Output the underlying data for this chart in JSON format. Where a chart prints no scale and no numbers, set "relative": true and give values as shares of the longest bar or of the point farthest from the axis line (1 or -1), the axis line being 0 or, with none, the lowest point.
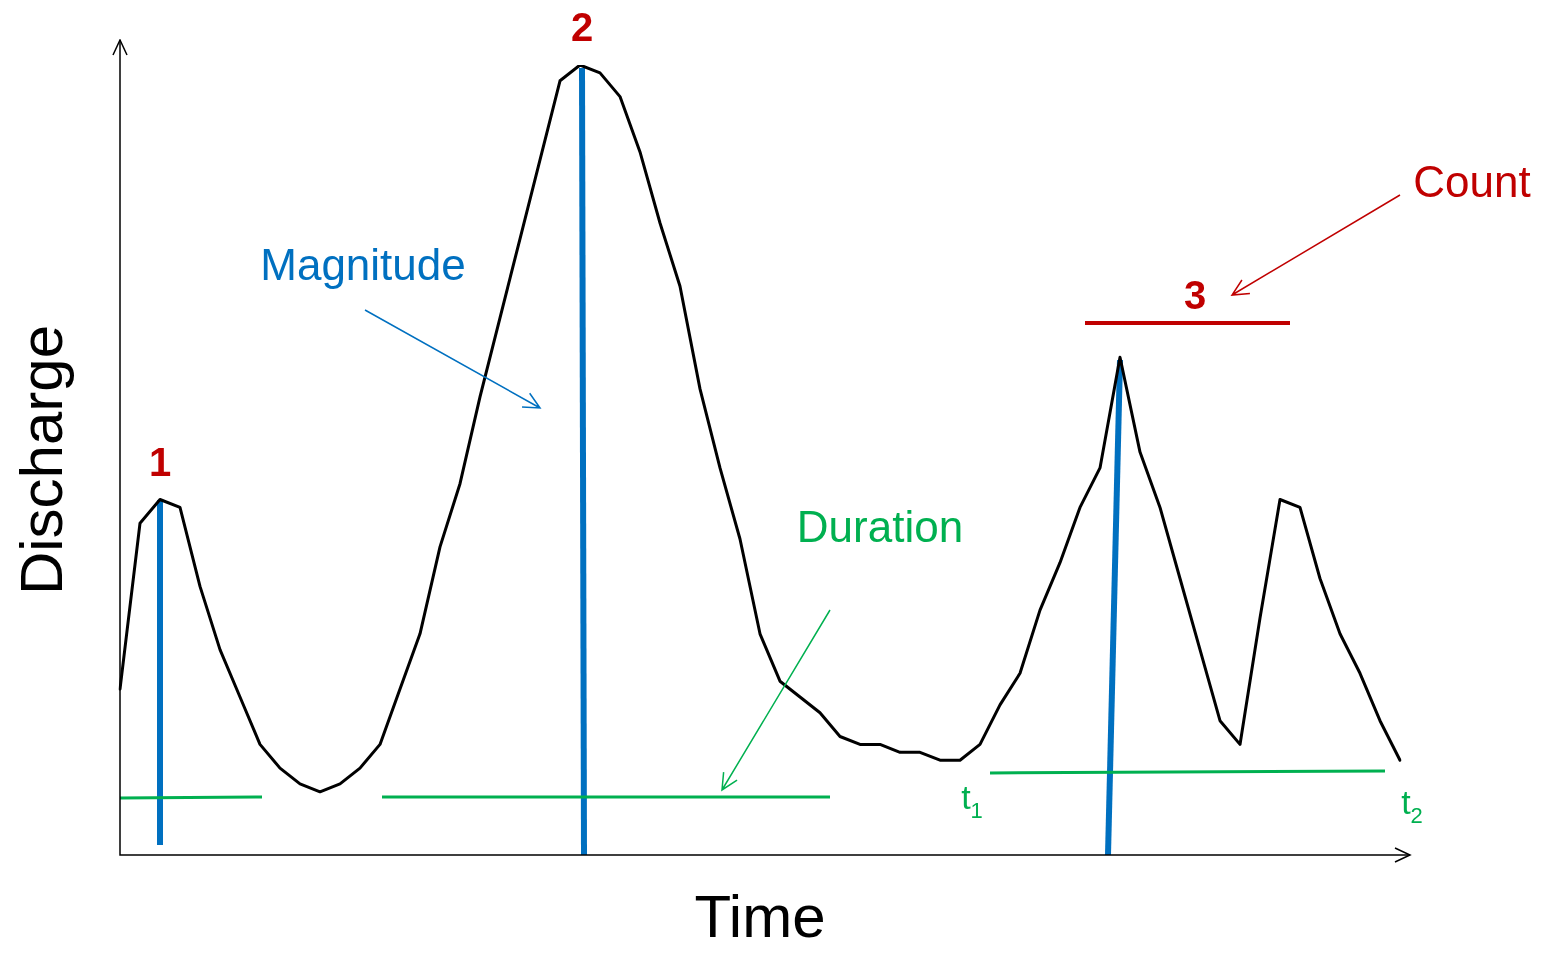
{
  "chart_data": {
    "type": "line",
    "relative": true,
    "xlabel": "Time",
    "ylabel": "Discharge",
    "legend": false,
    "marker": "none",
    "categories": [
      null,
      null,
      null,
      null,
      null,
      null,
      null,
      null,
      null,
      null,
      null,
      null,
      null,
      null,
      null,
      null,
      null,
      null,
      null,
      null,
      null,
      null,
      null,
      null,
      null,
      null,
      null,
      null,
      null,
      null,
      null,
      null,
      null,
      null,
      null,
      null,
      null,
      null,
      null,
      null,
      null,
      null,
      null,
      null,
      null,
      null,
      null,
      null,
      null,
      null,
      null,
      null,
      null,
      null,
      null,
      null,
      null,
      null,
      null,
      null,
      null,
      null,
      null,
      null,
      null
    ],
    "series": [
      {
        "color": "#000000",
        "values": [
          0.21,
          0.42,
          0.45,
          0.44,
          0.34,
          0.26,
          0.2,
          0.14,
          0.11,
          0.09,
          0.08,
          0.09,
          0.11,
          0.14,
          0.21,
          0.28,
          0.39,
          0.47,
          0.58,
          0.68,
          0.78,
          0.88,
          0.98,
          1,
          0.99,
          0.96,
          0.89,
          0.8,
          0.72,
          0.59,
          0.49,
          0.4,
          0.28,
          0.22,
          0.2,
          0.18,
          0.15,
          0.14,
          0.14,
          0.13,
          0.13,
          0.12,
          0.12,
          0.14,
          0.19,
          0.23,
          0.31,
          0.37,
          0.44,
          0.49,
          0.63,
          0.51,
          0.44,
          0.35,
          0.26,
          0.17,
          0.14,
          0.3,
          0.45,
          0.44,
          0.35,
          0.28,
          0.23,
          0.17,
          0.12
        ]
      }
    ],
    "annotations": [
      "1",
      "2",
      "3",
      "Magnitude",
      "Duration",
      "Count",
      "t$_{1}$",
      "t$_{2}$"
    ]
  }
}
